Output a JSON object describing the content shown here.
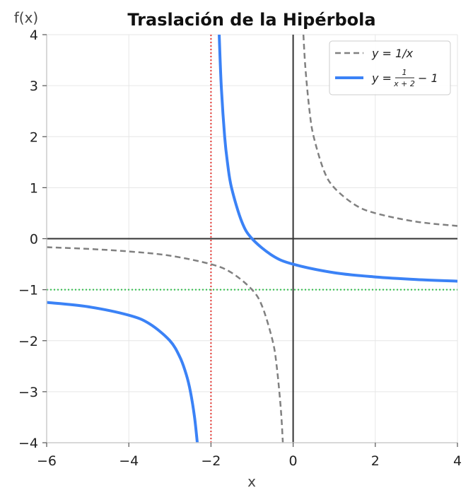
{
  "chart_data": {
    "type": "line",
    "title": "Traslación de la Hipérbola",
    "xlabel": "x",
    "ylabel": "f(x)",
    "xlim": [
      -6,
      4
    ],
    "ylim": [
      -4,
      4
    ],
    "xticks": [
      -6,
      -4,
      -2,
      0,
      2,
      4
    ],
    "yticks": [
      -4,
      -3,
      -2,
      -1,
      0,
      1,
      2,
      3,
      4
    ],
    "xtick_labels": [
      "−6",
      "−4",
      "−2",
      "0",
      "2",
      "4"
    ],
    "ytick_labels": [
      "−4",
      "−3",
      "−2",
      "−1",
      "0",
      "1",
      "2",
      "3",
      "4"
    ],
    "grid": true,
    "legend_position": "top-right",
    "series": [
      {
        "name": "y = 1/x",
        "style": "dashed",
        "color": "#808080",
        "segments": [
          {
            "x": [
              -6,
              -5,
              -4,
              -3,
              -2,
              -1.5,
              -1,
              -0.75,
              -0.5,
              -0.4,
              -0.3,
              -0.25
            ],
            "y": [
              -0.167,
              -0.2,
              -0.25,
              -0.333,
              -0.5,
              -0.667,
              -1,
              -1.333,
              -2,
              -2.5,
              -3.333,
              -4
            ]
          },
          {
            "x": [
              0.25,
              0.3,
              0.4,
              0.5,
              0.75,
              1,
              1.5,
              2,
              3,
              4
            ],
            "y": [
              4,
              3.333,
              2.5,
              2,
              1.333,
              1,
              0.667,
              0.5,
              0.333,
              0.25
            ]
          }
        ]
      },
      {
        "name": "y = 1/(x+2) − 1",
        "legend_main": "y =",
        "legend_num": "1",
        "legend_den": "x + 2",
        "legend_tail": "− 1",
        "style": "solid",
        "color": "#3b82f6",
        "segments": [
          {
            "x": [
              -6,
              -5,
              -4,
              -3.5,
              -3,
              -2.75,
              -2.6,
              -2.5,
              -2.4,
              -2.333
            ],
            "y": [
              -1.25,
              -1.333,
              -1.5,
              -1.667,
              -2,
              -2.333,
              -2.667,
              -3,
              -3.5,
              -4
            ]
          },
          {
            "x": [
              -1.8,
              -1.75,
              -1.667,
              -1.6,
              -1.5,
              -1.25,
              -1,
              -0.5,
              0,
              1,
              2,
              3,
              4
            ],
            "y": [
              4,
              3,
              2,
              1.5,
              1,
              0.333,
              0,
              -0.333,
              -0.5,
              -0.667,
              -0.75,
              -0.8,
              -0.833
            ]
          }
        ]
      }
    ],
    "asymptotes": [
      {
        "orientation": "vertical",
        "value": -2,
        "color": "#e53935",
        "style": "dotted"
      },
      {
        "orientation": "horizontal",
        "value": -1,
        "color": "#2fbf4a",
        "style": "dotted"
      }
    ]
  }
}
